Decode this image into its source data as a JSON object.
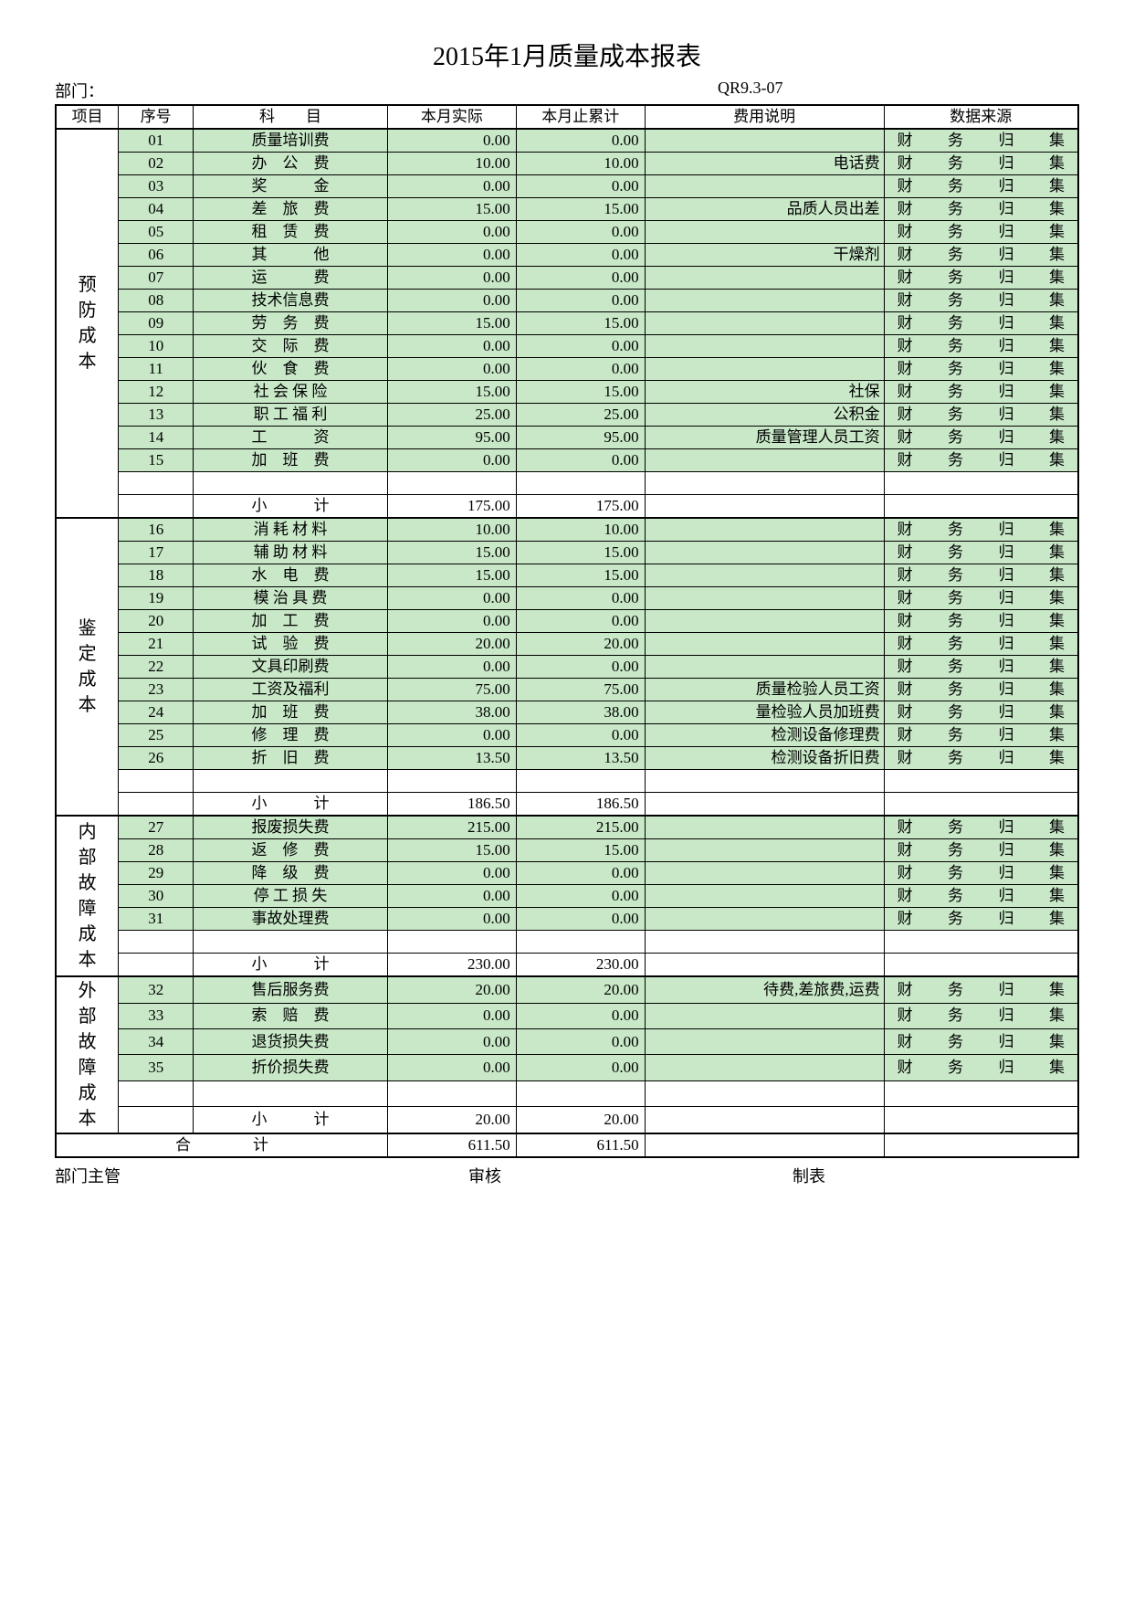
{
  "title": "2015年1月质量成本报表",
  "dept_label": "部门：",
  "form_no": "QR9.3-07",
  "headers": {
    "project": "项目",
    "seq": "序号",
    "subject": "科　　目",
    "actual": "本月实际",
    "cumulative": "本月止累计",
    "desc": "费用说明",
    "source": "数据来源"
  },
  "default_source": "财务归集",
  "colors": {
    "row_bg": "#c8e8c8",
    "border": "#000000",
    "page_bg": "#ffffff"
  },
  "sections": [
    {
      "label": "预防成本",
      "rows": [
        {
          "seq": "01",
          "subject": "质量培训费",
          "actual": "0.00",
          "cum": "0.00",
          "desc": ""
        },
        {
          "seq": "02",
          "subject": "办　公　费",
          "actual": "10.00",
          "cum": "10.00",
          "desc": "电话费"
        },
        {
          "seq": "03",
          "subject": "奖　　　金",
          "actual": "0.00",
          "cum": "0.00",
          "desc": ""
        },
        {
          "seq": "04",
          "subject": "差　旅　费",
          "actual": "15.00",
          "cum": "15.00",
          "desc": "品质人员出差"
        },
        {
          "seq": "05",
          "subject": "租　赁　费",
          "actual": "0.00",
          "cum": "0.00",
          "desc": ""
        },
        {
          "seq": "06",
          "subject": "其　　　他",
          "actual": "0.00",
          "cum": "0.00",
          "desc": "干燥剂"
        },
        {
          "seq": "07",
          "subject": "运　　　费",
          "actual": "0.00",
          "cum": "0.00",
          "desc": ""
        },
        {
          "seq": "08",
          "subject": "技术信息费",
          "actual": "0.00",
          "cum": "0.00",
          "desc": ""
        },
        {
          "seq": "09",
          "subject": "劳　务　费",
          "actual": "15.00",
          "cum": "15.00",
          "desc": ""
        },
        {
          "seq": "10",
          "subject": "交　际　费",
          "actual": "0.00",
          "cum": "0.00",
          "desc": ""
        },
        {
          "seq": "11",
          "subject": "伙　食　费",
          "actual": "0.00",
          "cum": "0.00",
          "desc": ""
        },
        {
          "seq": "12",
          "subject": "社 会 保 险",
          "actual": "15.00",
          "cum": "15.00",
          "desc": "社保"
        },
        {
          "seq": "13",
          "subject": "职 工 福 利",
          "actual": "25.00",
          "cum": "25.00",
          "desc": "公积金"
        },
        {
          "seq": "14",
          "subject": "工　　　资",
          "actual": "95.00",
          "cum": "95.00",
          "desc": "质量管理人员工资"
        },
        {
          "seq": "15",
          "subject": "加　班　费",
          "actual": "0.00",
          "cum": "0.00",
          "desc": ""
        }
      ],
      "subtotal": {
        "label": "小　　　计",
        "actual": "175.00",
        "cum": "175.00"
      }
    },
    {
      "label": "鉴定成本",
      "rows": [
        {
          "seq": "16",
          "subject": "消 耗 材 料",
          "actual": "10.00",
          "cum": "10.00",
          "desc": ""
        },
        {
          "seq": "17",
          "subject": "辅 助 材 料",
          "actual": "15.00",
          "cum": "15.00",
          "desc": ""
        },
        {
          "seq": "18",
          "subject": "水　电　费",
          "actual": "15.00",
          "cum": "15.00",
          "desc": ""
        },
        {
          "seq": "19",
          "subject": "模 治 具 费",
          "actual": "0.00",
          "cum": "0.00",
          "desc": ""
        },
        {
          "seq": "20",
          "subject": "加　工　费",
          "actual": "0.00",
          "cum": "0.00",
          "desc": ""
        },
        {
          "seq": "21",
          "subject": "试　验　费",
          "actual": "20.00",
          "cum": "20.00",
          "desc": ""
        },
        {
          "seq": "22",
          "subject": "文具印刷费",
          "actual": "0.00",
          "cum": "0.00",
          "desc": ""
        },
        {
          "seq": "23",
          "subject": "工资及福利",
          "actual": "75.00",
          "cum": "75.00",
          "desc": "质量检验人员工资"
        },
        {
          "seq": "24",
          "subject": "加　班　费",
          "actual": "38.00",
          "cum": "38.00",
          "desc": "量检验人员加班费"
        },
        {
          "seq": "25",
          "subject": "修　理　费",
          "actual": "0.00",
          "cum": "0.00",
          "desc": "检测设备修理费"
        },
        {
          "seq": "26",
          "subject": "折　旧　费",
          "actual": "13.50",
          "cum": "13.50",
          "desc": "检测设备折旧费"
        }
      ],
      "subtotal": {
        "label": "小　　　计",
        "actual": "186.50",
        "cum": "186.50"
      }
    },
    {
      "label": "内部故障成本",
      "rows": [
        {
          "seq": "27",
          "subject": "报废损失费",
          "actual": "215.00",
          "cum": "215.00",
          "desc": ""
        },
        {
          "seq": "28",
          "subject": "返　修　费",
          "actual": "15.00",
          "cum": "15.00",
          "desc": ""
        },
        {
          "seq": "29",
          "subject": "降　级　费",
          "actual": "0.00",
          "cum": "0.00",
          "desc": ""
        },
        {
          "seq": "30",
          "subject": "停 工 损 失",
          "actual": "0.00",
          "cum": "0.00",
          "desc": ""
        },
        {
          "seq": "31",
          "subject": "事故处理费",
          "actual": "0.00",
          "cum": "0.00",
          "desc": ""
        }
      ],
      "subtotal": {
        "label": "小　　　计",
        "actual": "230.00",
        "cum": "230.00"
      }
    },
    {
      "label": "外部故障成本",
      "rows": [
        {
          "seq": "32",
          "subject": "售后服务费",
          "actual": "20.00",
          "cum": "20.00",
          "desc": "待费,差旅费,运费"
        },
        {
          "seq": "33",
          "subject": "索　赔　费",
          "actual": "0.00",
          "cum": "0.00",
          "desc": ""
        },
        {
          "seq": "34",
          "subject": "退货损失费",
          "actual": "0.00",
          "cum": "0.00",
          "desc": ""
        },
        {
          "seq": "35",
          "subject": "折价损失费",
          "actual": "0.00",
          "cum": "0.00",
          "desc": ""
        }
      ],
      "subtotal": {
        "label": "小　　　计",
        "actual": "20.00",
        "cum": "20.00"
      }
    }
  ],
  "grand_total": {
    "label": "合　　　　计",
    "actual": "611.50",
    "cum": "611.50"
  },
  "footer": {
    "f1": "部门主管",
    "f2": "审核",
    "f3": "制表"
  }
}
